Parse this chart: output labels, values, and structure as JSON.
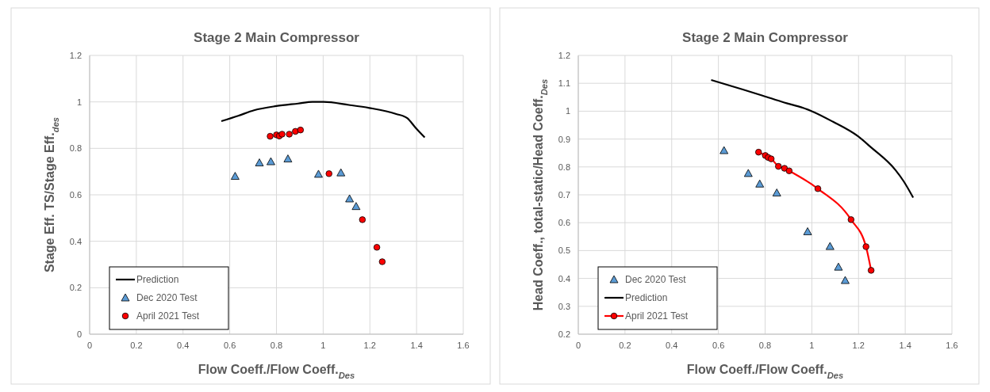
{
  "chart_data": [
    {
      "type": "scatter",
      "title": "Stage 2 Main Compressor",
      "xlabel": "Flow Coeff./Flow Coeff.$_{Des}$",
      "ylabel": "Stage Eff. TS/Stage Eff.$_{des}$",
      "xlim": [
        0,
        1.6
      ],
      "xticks": [
        0,
        0.2,
        0.4,
        0.6,
        0.8,
        1,
        1.2,
        1.4,
        1.6
      ],
      "ylim": [
        0,
        1.2
      ],
      "yticks": [
        0,
        0.2,
        0.4,
        0.6,
        0.8,
        1,
        1.2
      ],
      "grid": true,
      "legend": "bottom left",
      "series": [
        {
          "name": "Prediction",
          "type": "line",
          "color": "#000000",
          "marker": "none",
          "x": [
            0.564,
            0.636,
            0.704,
            0.799,
            0.893,
            0.954,
            1.002,
            1.11,
            1.198,
            1.313,
            1.36,
            1.394,
            1.435
          ],
          "values": [
            0.917,
            0.94,
            0.964,
            0.982,
            0.993,
            1.0,
            1.0,
            0.987,
            0.974,
            0.948,
            0.93,
            0.891,
            0.847
          ]
        },
        {
          "name": "Dec 2020 Test",
          "type": "scatter",
          "color": "#5b9bd5",
          "marker": "triangle",
          "x": [
            0.623,
            0.727,
            0.776,
            0.849,
            0.98,
            1.076,
            1.113,
            1.141
          ],
          "values": [
            0.68,
            0.738,
            0.743,
            0.755,
            0.689,
            0.695,
            0.583,
            0.55
          ]
        },
        {
          "name": "April 2021 Test",
          "type": "scatter",
          "color": "#ff0000",
          "marker": "circle",
          "x": [
            0.773,
            0.8,
            0.812,
            0.824,
            0.855,
            0.881,
            0.903,
            1.025,
            1.168,
            1.23,
            1.253
          ],
          "values": [
            0.852,
            0.858,
            0.853,
            0.861,
            0.861,
            0.873,
            0.879,
            0.691,
            0.493,
            0.374,
            0.312
          ]
        }
      ]
    },
    {
      "type": "scatter",
      "title": "Stage 2 Main Compressor",
      "xlabel": "Flow Coeff./Flow Coeff.$_{Des}$",
      "ylabel": "Head Coeff.,  total-static/Head Coeff.$_{Des}$",
      "xlim": [
        0,
        1.6
      ],
      "xticks": [
        0,
        0.2,
        0.4,
        0.6,
        0.8,
        1,
        1.2,
        1.4,
        1.6
      ],
      "ylim": [
        0.2,
        1.2
      ],
      "yticks": [
        0.2,
        0.3,
        0.4,
        0.5,
        0.6,
        0.7,
        0.8,
        0.9,
        1,
        1.1,
        1.2
      ],
      "grid": true,
      "legend": "bottom left",
      "series": [
        {
          "name": "Dec 2020 Test",
          "type": "scatter",
          "color": "#5b9bd5",
          "marker": "triangle",
          "x": [
            0.624,
            0.728,
            0.777,
            0.85,
            0.982,
            1.078,
            1.114,
            1.143
          ],
          "values": [
            0.859,
            0.777,
            0.739,
            0.707,
            0.568,
            0.515,
            0.441,
            0.393
          ]
        },
        {
          "name": "Prediction",
          "type": "line",
          "color": "#000000",
          "marker": "none",
          "x": [
            0.569,
            0.696,
            0.789,
            0.882,
            0.963,
            1.0,
            1.091,
            1.196,
            1.254,
            1.358,
            1.393,
            1.434
          ],
          "values": [
            1.112,
            1.08,
            1.056,
            1.031,
            1.012,
            1.0,
            0.962,
            0.911,
            0.87,
            0.789,
            0.749,
            0.69
          ]
        },
        {
          "name": "April 2021 Test",
          "type": "line",
          "color": "#ff0000",
          "marker": "circle",
          "x": [
            0.772,
            0.801,
            0.813,
            0.826,
            0.857,
            0.883,
            0.903,
            1.026,
            1.168,
            1.232,
            1.254
          ],
          "values": [
            0.853,
            0.841,
            0.834,
            0.829,
            0.802,
            0.795,
            0.786,
            0.722,
            0.611,
            0.514,
            0.429
          ]
        }
      ]
    }
  ]
}
